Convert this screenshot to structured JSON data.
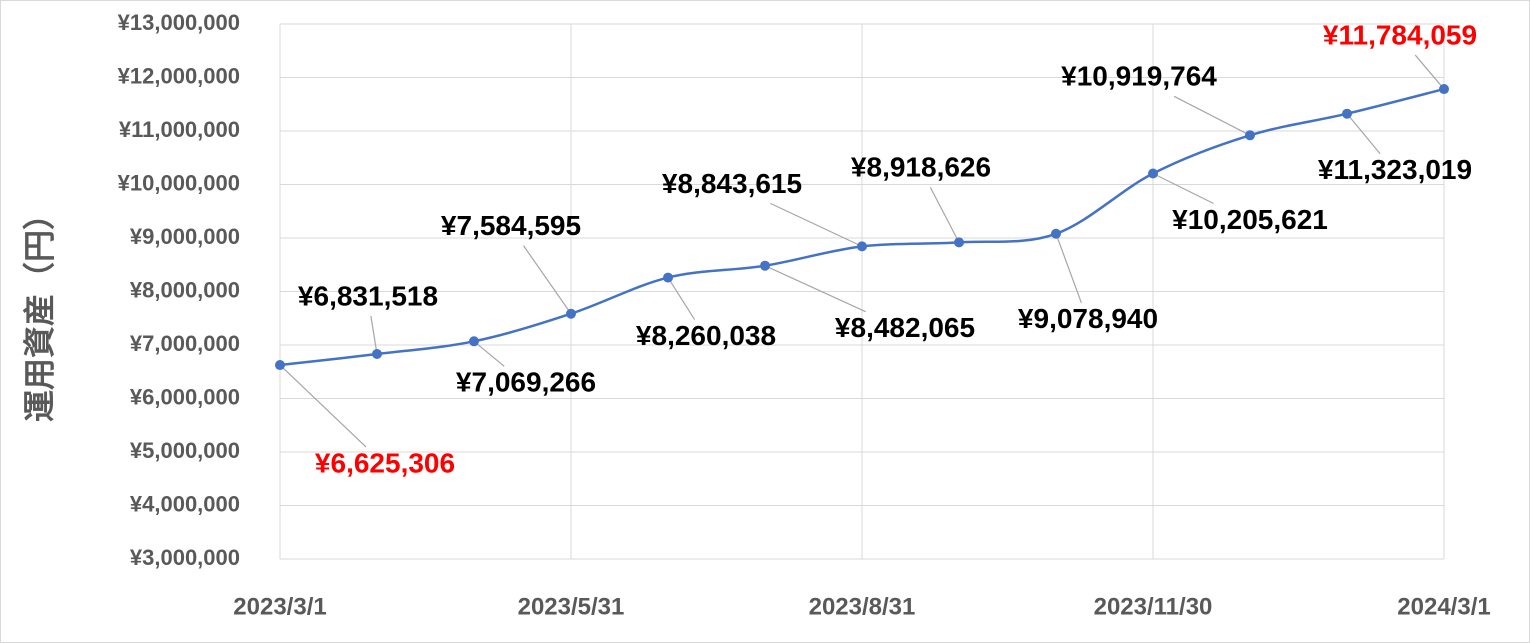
{
  "chart_data": {
    "type": "line",
    "y_label": "運用資産（円）",
    "categories": [
      "2023/3/1",
      null,
      null,
      "2023/5/31",
      null,
      null,
      "2023/8/31",
      null,
      null,
      "2023/11/30",
      null,
      null,
      "2024/3/1"
    ],
    "series": [
      {
        "color": "#4472c4",
        "values": [
          6625306,
          6831518,
          7069266,
          7584595,
          8260038,
          8482065,
          8843615,
          8918626,
          9078940,
          10205621,
          10919764,
          11323019,
          11784059
        ],
        "value_labels": [
          "¥6,625,306",
          "¥6,831,518",
          "¥7,069,266",
          "¥7,584,595",
          "¥8,260,038",
          "¥8,482,065",
          "¥8,843,615",
          "¥8,918,626",
          "¥9,078,940",
          "¥10,205,621",
          "¥10,919,764",
          "¥11,323,019",
          "¥11,784,059"
        ],
        "value_label_colors": [
          "#ff0000",
          "#000000",
          "#000000",
          "#000000",
          "#000000",
          "#000000",
          "#000000",
          "#000000",
          "#000000",
          "#000000",
          "#000000",
          "#000000",
          "#ff0000"
        ]
      }
    ],
    "ylim": [
      3000000,
      13000000
    ],
    "yticks": [
      {
        "value": 3000000,
        "label": "¥3,000,000"
      },
      {
        "value": 4000000,
        "label": "¥4,000,000"
      },
      {
        "value": 5000000,
        "label": "¥5,000,000"
      },
      {
        "value": 6000000,
        "label": "¥6,000,000"
      },
      {
        "value": 7000000,
        "label": "¥7,000,000"
      },
      {
        "value": 8000000,
        "label": "¥8,000,000"
      },
      {
        "value": 9000000,
        "label": "¥9,000,000"
      },
      {
        "value": 10000000,
        "label": "¥10,000,000"
      },
      {
        "value": 11000000,
        "label": "¥11,000,000"
      },
      {
        "value": 12000000,
        "label": "¥12,000,000"
      },
      {
        "value": 13000000,
        "label": "¥13,000,000"
      }
    ],
    "grid": true
  }
}
